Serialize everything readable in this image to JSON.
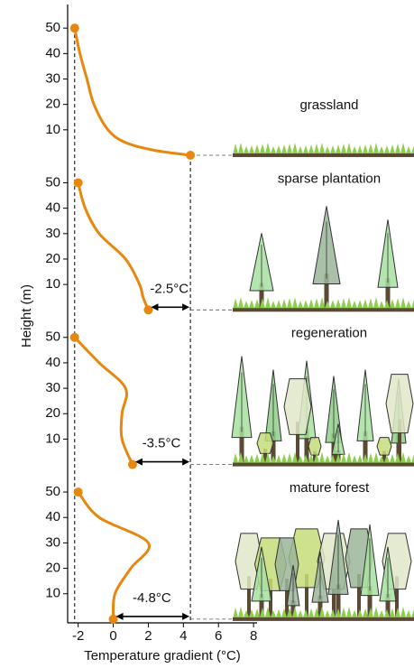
{
  "chart_data": {
    "type": "line",
    "x_label": "Temperature gradient (°C)",
    "y_label": "Height (m)",
    "xlim": [
      -2.6,
      8.2
    ],
    "xticks": [
      -2,
      0,
      2,
      4,
      6,
      8
    ],
    "ylim": [
      0,
      60
    ],
    "yticks": [
      10,
      20,
      30,
      40,
      50
    ],
    "color": "#e8870e",
    "panels": [
      {
        "label": "grassland",
        "x": [
          -2.2,
          -1.9,
          -1.5,
          -1.1,
          -0.3,
          0.7,
          2.3,
          4.4
        ],
        "y": [
          50,
          40,
          30,
          20,
          10,
          5,
          2,
          0
        ]
      },
      {
        "label": "sparse plantation",
        "x": [
          -2.0,
          -1.6,
          -0.8,
          0.7,
          1.5,
          1.7,
          2.0
        ],
        "y": [
          50,
          40,
          30,
          20,
          10,
          5,
          0
        ],
        "annotation": "-2.5°C"
      },
      {
        "label": "regeneration",
        "x": [
          -2.2,
          -0.8,
          0.7,
          0.5,
          0.5,
          1.1
        ],
        "y": [
          50,
          40,
          30,
          20,
          10,
          0
        ],
        "annotation": "-3.5°C"
      },
      {
        "label": "mature forest",
        "x": [
          -2.0,
          -0.8,
          2.0,
          1.0,
          0.1,
          0.0
        ],
        "y": [
          50,
          40,
          30,
          20,
          10,
          0
        ],
        "annotation": "-4.8°C"
      }
    ]
  }
}
